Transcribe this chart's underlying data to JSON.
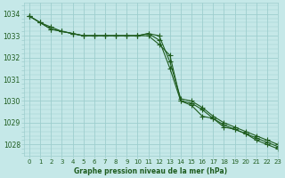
{
  "title": "Graphe pression niveau de la mer (hPa)",
  "bg_color": "#c5e8e8",
  "grid_color": "#9ecece",
  "line_color": "#1e5c1e",
  "xlim": [
    -0.5,
    23
  ],
  "ylim": [
    1027.5,
    1034.5
  ],
  "yticks": [
    1028,
    1029,
    1030,
    1031,
    1032,
    1033,
    1034
  ],
  "xticks": [
    0,
    1,
    2,
    3,
    4,
    5,
    6,
    7,
    8,
    9,
    10,
    11,
    12,
    13,
    14,
    15,
    16,
    17,
    18,
    19,
    20,
    21,
    22,
    23
  ],
  "series": [
    [
      1033.9,
      1033.6,
      1033.3,
      1033.2,
      1033.1,
      1033.0,
      1033.0,
      1033.0,
      1033.0,
      1033.0,
      1033.0,
      1033.1,
      1033.0,
      1031.8,
      1030.1,
      1030.0,
      1029.7,
      1029.3,
      1029.0,
      1028.8,
      1028.6,
      1028.4,
      1028.2,
      1028.0
    ],
    [
      1033.9,
      1033.6,
      1033.3,
      1033.2,
      1033.1,
      1033.0,
      1033.0,
      1033.0,
      1033.0,
      1033.0,
      1033.0,
      1033.1,
      1032.8,
      1031.5,
      1030.0,
      1029.9,
      1029.6,
      1029.2,
      1028.8,
      1028.7,
      1028.5,
      1028.3,
      1028.1,
      1027.9
    ],
    [
      1033.9,
      1033.6,
      1033.4,
      1033.2,
      1033.1,
      1033.0,
      1033.0,
      1033.0,
      1033.0,
      1033.0,
      1033.0,
      1033.0,
      1032.6,
      1032.1,
      1030.0,
      1029.8,
      1029.3,
      1029.2,
      1028.9,
      1028.7,
      1028.5,
      1028.2,
      1028.0,
      1027.8
    ]
  ],
  "marker": "+",
  "markersize": 4,
  "linewidth": 0.8,
  "xlabel_fontsize": 5.5,
  "tick_fontsize": 5,
  "ylabel_fontsize": 5.5
}
